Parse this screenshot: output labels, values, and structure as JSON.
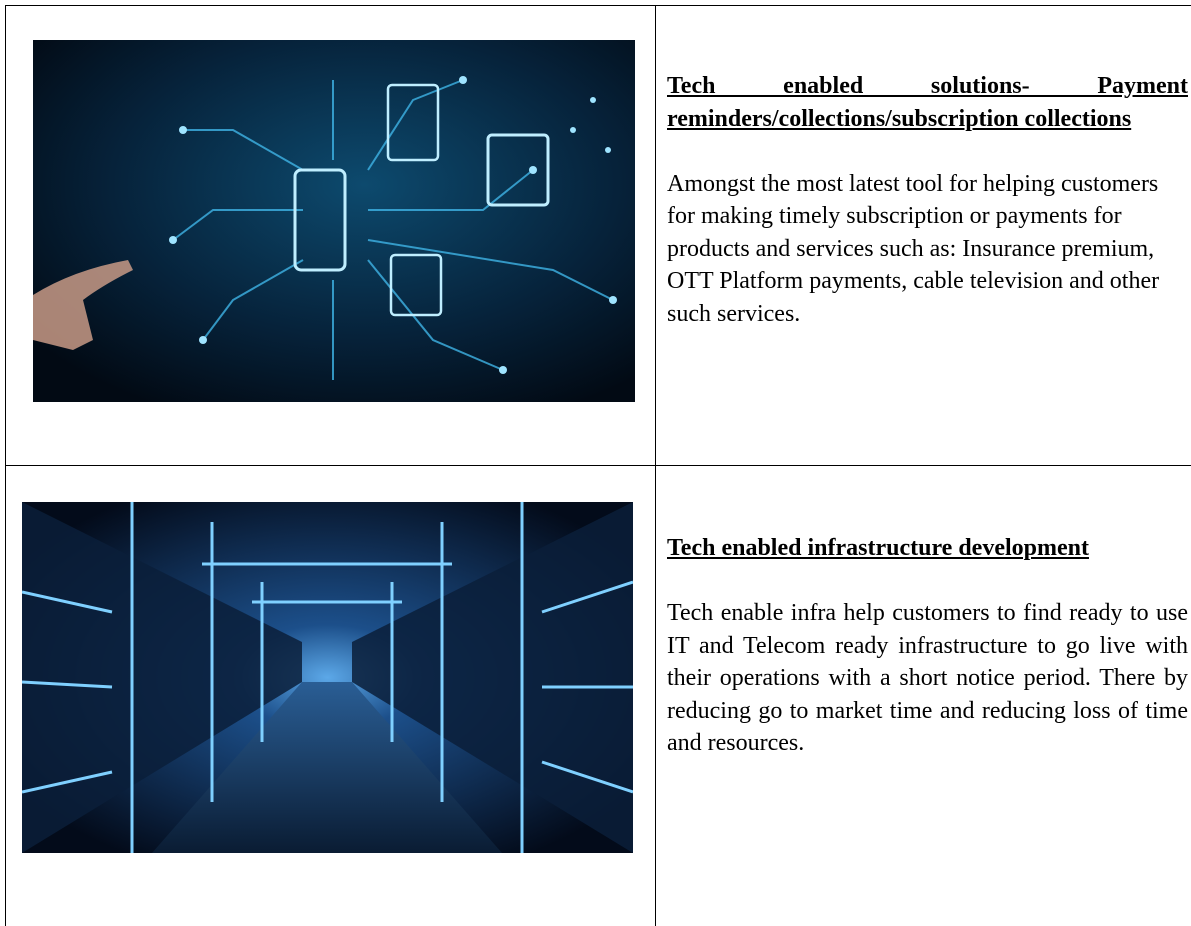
{
  "table": {
    "rows": [
      {
        "title": "Tech enabled solutions- Payment reminders/collections/subscription collections",
        "body": "Amongst the most latest tool for helping customers for making timely subscription or payments for products and services such as: Insurance premium, OTT Platform payments, cable television and other such services."
      },
      {
        "title": "Tech enabled infrastructure development",
        "body": "Tech enable infra help customers to find ready to use IT and Telecom ready infrastructure to go live with their operations with a short notice period. There by reducing go to market time and reducing loss of time and resources."
      }
    ]
  }
}
